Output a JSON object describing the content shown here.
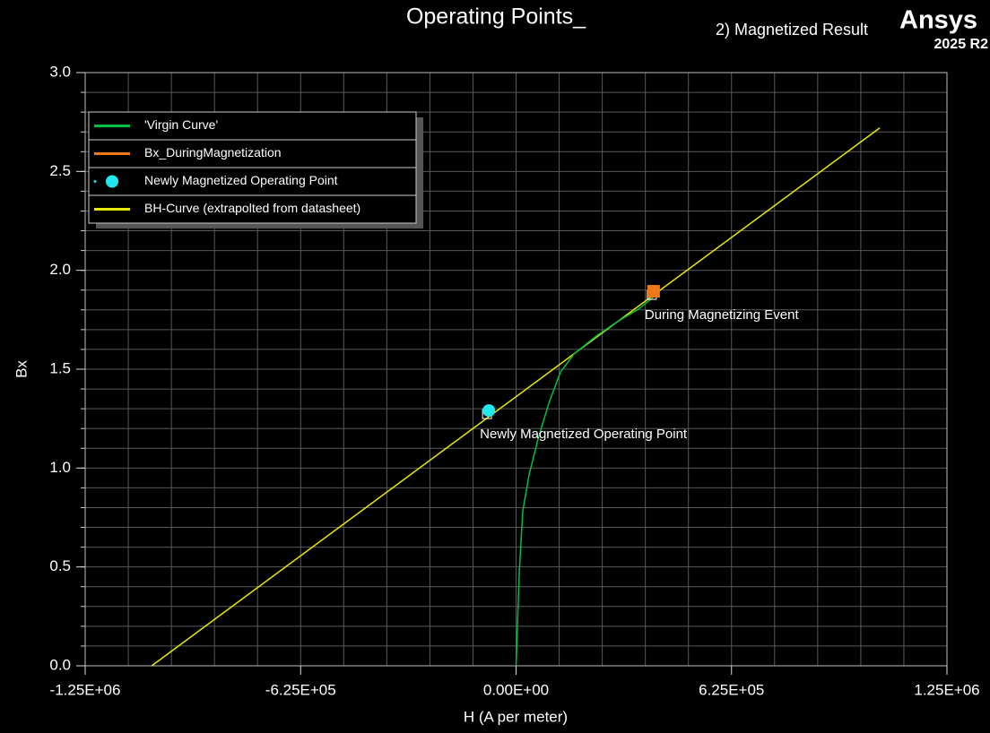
{
  "chart_data": {
    "type": "line",
    "title": "Operating Points_",
    "subtitle": "2) Magnetized Result",
    "brand": "Ansys",
    "version": "2025 R2",
    "x_label": "H (A  per  meter)",
    "y_label": "Bx",
    "xlim": [
      -1250000,
      1250000
    ],
    "ylim": [
      0,
      3
    ],
    "xticks": [
      {
        "value": -1250000,
        "label": "-1.25E+06"
      },
      {
        "value": -625000,
        "label": "-6.25E+05"
      },
      {
        "value": 0,
        "label": "0.00E+00"
      },
      {
        "value": 625000,
        "label": "6.25E+05"
      },
      {
        "value": 1250000,
        "label": "1.25E+06"
      }
    ],
    "yticks": [
      {
        "value": 0,
        "label": "0.0"
      },
      0.5,
      {
        "value": 1,
        "label": "1.0"
      },
      1.5,
      {
        "value": 2,
        "label": "2.0"
      },
      2.5,
      {
        "value": 3,
        "label": "3.0"
      }
    ],
    "xgrid": [
      -1250000,
      -1125000,
      -1000000,
      -875000,
      -750000,
      -625000,
      -500000,
      -375000,
      -250000,
      -125000,
      0,
      125000,
      250000,
      375000,
      500000,
      625000,
      750000,
      875000,
      1000000,
      1125000,
      1250000
    ],
    "ygrid": [
      0,
      0.1,
      0.2,
      0.3,
      0.4,
      0.5,
      0.6,
      0.7,
      0.8,
      0.9,
      1,
      1.1,
      1.2,
      1.3,
      1.4,
      1.5,
      1.6,
      1.7,
      1.8,
      1.9,
      2,
      2.1,
      2.2,
      2.3,
      2.4,
      2.5,
      2.6,
      2.7,
      2.8,
      2.9,
      3
    ],
    "grid": true,
    "legend": "upper left",
    "series": [
      {
        "name": "'Virgin Curve'",
        "color": "#00c040",
        "marker": "none",
        "x": [
          0,
          9100,
          19500,
          37700,
          63700,
          95000,
          129000,
          168000,
          233000,
          298000,
          355000,
          397000
        ],
        "values": [
          0,
          0.467,
          0.784,
          0.965,
          1.147,
          1.328,
          1.486,
          1.577,
          1.668,
          1.745,
          1.804,
          1.862
        ]
      },
      {
        "name": "Bx_DuringMagnetization",
        "color": "#f07818",
        "marker": "square",
        "x": [
          399000
        ],
        "values": [
          1.894
        ],
        "annotation": "During Magnetizing Event"
      },
      {
        "name": "Newly Magnetized Operating Point",
        "color": "#20e8f0",
        "marker": "circle",
        "x": [
          -79000
        ],
        "values": [
          1.291
        ],
        "annotation": "Newly Magnetized Operating Point"
      },
      {
        "name": "BH-Curve (extrapolted from datasheet)",
        "color": "#e8e800",
        "marker": "none",
        "x": [
          -1057000,
          1055000
        ],
        "values": [
          0,
          2.72
        ]
      }
    ]
  }
}
